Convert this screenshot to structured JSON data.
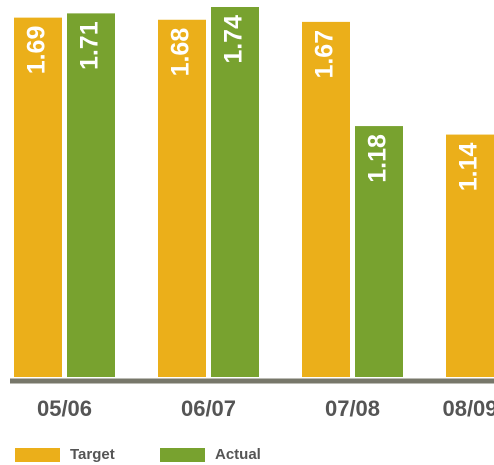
{
  "chart_data": {
    "type": "bar",
    "categories": [
      "05/06",
      "06/07",
      "07/08",
      "08/09"
    ],
    "series": [
      {
        "name": "Target",
        "color": "#ebaf1a",
        "values": [
          1.69,
          1.68,
          1.67,
          1.14
        ]
      },
      {
        "name": "Actual",
        "color": "#78a22f",
        "values": [
          1.71,
          1.74,
          1.18,
          null
        ]
      }
    ],
    "legend": "bottom-left"
  }
}
